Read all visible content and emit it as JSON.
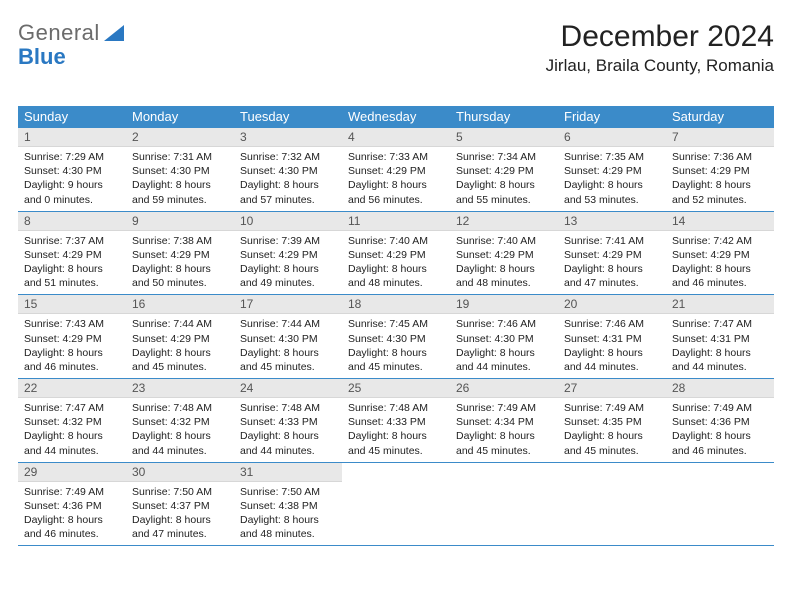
{
  "logo": {
    "text1": "General",
    "text2": "Blue"
  },
  "title": "December 2024",
  "location": "Jirlau, Braila County, Romania",
  "day_headers": [
    "Sunday",
    "Monday",
    "Tuesday",
    "Wednesday",
    "Thursday",
    "Friday",
    "Saturday"
  ],
  "colors": {
    "header_bg": "#3b8bc9",
    "header_fg": "#ffffff",
    "daynum_bg": "#e8e8e8",
    "border": "#3b8bc9",
    "logo_gray": "#6b6b6b",
    "logo_blue": "#2a78c2"
  },
  "weeks": [
    [
      {
        "n": "1",
        "sr": "7:29 AM",
        "ss": "4:30 PM",
        "dl": "9 hours and 0 minutes."
      },
      {
        "n": "2",
        "sr": "7:31 AM",
        "ss": "4:30 PM",
        "dl": "8 hours and 59 minutes."
      },
      {
        "n": "3",
        "sr": "7:32 AM",
        "ss": "4:30 PM",
        "dl": "8 hours and 57 minutes."
      },
      {
        "n": "4",
        "sr": "7:33 AM",
        "ss": "4:29 PM",
        "dl": "8 hours and 56 minutes."
      },
      {
        "n": "5",
        "sr": "7:34 AM",
        "ss": "4:29 PM",
        "dl": "8 hours and 55 minutes."
      },
      {
        "n": "6",
        "sr": "7:35 AM",
        "ss": "4:29 PM",
        "dl": "8 hours and 53 minutes."
      },
      {
        "n": "7",
        "sr": "7:36 AM",
        "ss": "4:29 PM",
        "dl": "8 hours and 52 minutes."
      }
    ],
    [
      {
        "n": "8",
        "sr": "7:37 AM",
        "ss": "4:29 PM",
        "dl": "8 hours and 51 minutes."
      },
      {
        "n": "9",
        "sr": "7:38 AM",
        "ss": "4:29 PM",
        "dl": "8 hours and 50 minutes."
      },
      {
        "n": "10",
        "sr": "7:39 AM",
        "ss": "4:29 PM",
        "dl": "8 hours and 49 minutes."
      },
      {
        "n": "11",
        "sr": "7:40 AM",
        "ss": "4:29 PM",
        "dl": "8 hours and 48 minutes."
      },
      {
        "n": "12",
        "sr": "7:40 AM",
        "ss": "4:29 PM",
        "dl": "8 hours and 48 minutes."
      },
      {
        "n": "13",
        "sr": "7:41 AM",
        "ss": "4:29 PM",
        "dl": "8 hours and 47 minutes."
      },
      {
        "n": "14",
        "sr": "7:42 AM",
        "ss": "4:29 PM",
        "dl": "8 hours and 46 minutes."
      }
    ],
    [
      {
        "n": "15",
        "sr": "7:43 AM",
        "ss": "4:29 PM",
        "dl": "8 hours and 46 minutes."
      },
      {
        "n": "16",
        "sr": "7:44 AM",
        "ss": "4:29 PM",
        "dl": "8 hours and 45 minutes."
      },
      {
        "n": "17",
        "sr": "7:44 AM",
        "ss": "4:30 PM",
        "dl": "8 hours and 45 minutes."
      },
      {
        "n": "18",
        "sr": "7:45 AM",
        "ss": "4:30 PM",
        "dl": "8 hours and 45 minutes."
      },
      {
        "n": "19",
        "sr": "7:46 AM",
        "ss": "4:30 PM",
        "dl": "8 hours and 44 minutes."
      },
      {
        "n": "20",
        "sr": "7:46 AM",
        "ss": "4:31 PM",
        "dl": "8 hours and 44 minutes."
      },
      {
        "n": "21",
        "sr": "7:47 AM",
        "ss": "4:31 PM",
        "dl": "8 hours and 44 minutes."
      }
    ],
    [
      {
        "n": "22",
        "sr": "7:47 AM",
        "ss": "4:32 PM",
        "dl": "8 hours and 44 minutes."
      },
      {
        "n": "23",
        "sr": "7:48 AM",
        "ss": "4:32 PM",
        "dl": "8 hours and 44 minutes."
      },
      {
        "n": "24",
        "sr": "7:48 AM",
        "ss": "4:33 PM",
        "dl": "8 hours and 44 minutes."
      },
      {
        "n": "25",
        "sr": "7:48 AM",
        "ss": "4:33 PM",
        "dl": "8 hours and 45 minutes."
      },
      {
        "n": "26",
        "sr": "7:49 AM",
        "ss": "4:34 PM",
        "dl": "8 hours and 45 minutes."
      },
      {
        "n": "27",
        "sr": "7:49 AM",
        "ss": "4:35 PM",
        "dl": "8 hours and 45 minutes."
      },
      {
        "n": "28",
        "sr": "7:49 AM",
        "ss": "4:36 PM",
        "dl": "8 hours and 46 minutes."
      }
    ],
    [
      {
        "n": "29",
        "sr": "7:49 AM",
        "ss": "4:36 PM",
        "dl": "8 hours and 46 minutes."
      },
      {
        "n": "30",
        "sr": "7:50 AM",
        "ss": "4:37 PM",
        "dl": "8 hours and 47 minutes."
      },
      {
        "n": "31",
        "sr": "7:50 AM",
        "ss": "4:38 PM",
        "dl": "8 hours and 48 minutes."
      },
      {
        "empty": true
      },
      {
        "empty": true
      },
      {
        "empty": true
      },
      {
        "empty": true
      }
    ]
  ],
  "labels": {
    "sunrise": "Sunrise:",
    "sunset": "Sunset:",
    "daylight": "Daylight:"
  }
}
